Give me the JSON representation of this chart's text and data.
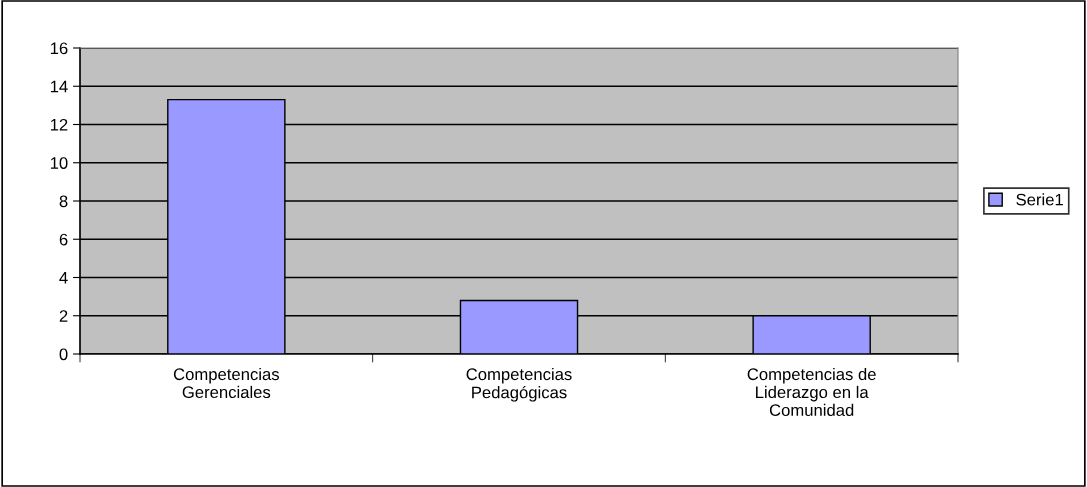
{
  "chart_data": {
    "type": "bar",
    "categories": [
      "Competencias\nGerenciales",
      "Competencias\nPedagógicas",
      "Competencias de\nLiderazgo en la\nComunidad"
    ],
    "series": [
      {
        "name": "Serie1",
        "color": "#9999ff",
        "values": [
          13.3,
          2.8,
          2.0
        ]
      }
    ],
    "ylim": [
      0,
      16
    ],
    "yticks": [
      0,
      2,
      4,
      6,
      8,
      10,
      12,
      14,
      16
    ],
    "grid": "y",
    "legend": "right"
  }
}
